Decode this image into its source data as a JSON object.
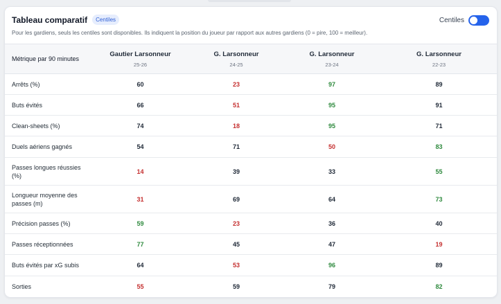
{
  "header": {
    "title": "Tableau comparatif",
    "badge": "Centiles",
    "subtitle": "Pour les gardiens, seuls les centiles sont disponibles. Ils indiquent la position du joueur par rapport aux autres gardiens (0 = pire, 100 = meilleur).",
    "toggle_label": "Centiles",
    "toggle_on": true
  },
  "table": {
    "metric_header": "Métrique par 90 minutes",
    "columns": [
      {
        "player": "Gautier Larsonneur",
        "season": "25-26"
      },
      {
        "player": "G. Larsonneur",
        "season": "24-25"
      },
      {
        "player": "G. Larsonneur",
        "season": "23-24"
      },
      {
        "player": "G. Larsonneur",
        "season": "22-23"
      }
    ],
    "rows": [
      {
        "metric": "Arrêts (%)",
        "values": [
          "60",
          "23",
          "97",
          "89"
        ],
        "status": [
          "mid",
          "low",
          "high",
          "mid"
        ]
      },
      {
        "metric": "Buts évités",
        "values": [
          "66",
          "51",
          "95",
          "91"
        ],
        "status": [
          "mid",
          "low",
          "high",
          "mid"
        ]
      },
      {
        "metric": "Clean-sheets (%)",
        "values": [
          "74",
          "18",
          "95",
          "71"
        ],
        "status": [
          "mid",
          "low",
          "high",
          "mid"
        ]
      },
      {
        "metric": "Duels aériens gagnés",
        "values": [
          "54",
          "71",
          "50",
          "83"
        ],
        "status": [
          "mid",
          "mid",
          "low",
          "high"
        ]
      },
      {
        "metric": "Passes longues réussies (%)",
        "values": [
          "14",
          "39",
          "33",
          "55"
        ],
        "status": [
          "low",
          "mid",
          "mid",
          "high"
        ]
      },
      {
        "metric": "Longueur moyenne des passes (m)",
        "values": [
          "31",
          "69",
          "64",
          "73"
        ],
        "status": [
          "low",
          "mid",
          "mid",
          "high"
        ]
      },
      {
        "metric": "Précision passes (%)",
        "values": [
          "59",
          "23",
          "36",
          "40"
        ],
        "status": [
          "high",
          "low",
          "mid",
          "mid"
        ]
      },
      {
        "metric": "Passes réceptionnées",
        "values": [
          "77",
          "45",
          "47",
          "19"
        ],
        "status": [
          "high",
          "mid",
          "mid",
          "low"
        ]
      },
      {
        "metric": "Buts évités par xG subis",
        "values": [
          "64",
          "53",
          "96",
          "89"
        ],
        "status": [
          "mid",
          "low",
          "high",
          "mid"
        ]
      },
      {
        "metric": "Sorties",
        "values": [
          "55",
          "59",
          "79",
          "82"
        ],
        "status": [
          "low",
          "mid",
          "mid",
          "high"
        ]
      }
    ]
  },
  "colors": {
    "low": "#c53030",
    "high": "#2f8a3e",
    "neutral": "#1f2937",
    "accent": "#2563eb"
  }
}
